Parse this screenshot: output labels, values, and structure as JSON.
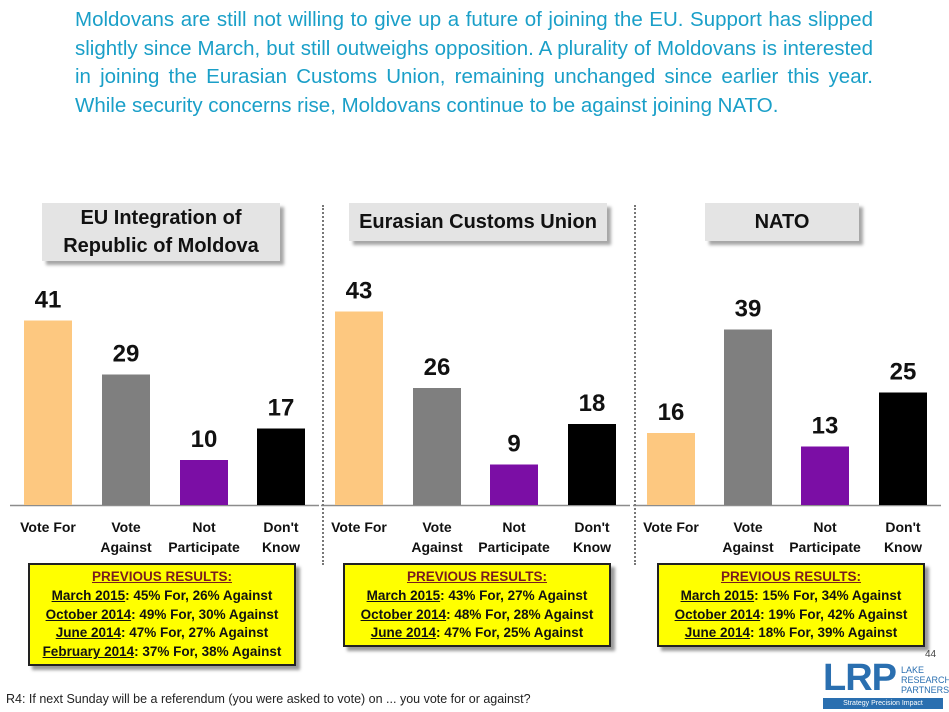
{
  "headline": "Moldovans are still not willing to give up a future of joining the EU. Support has slipped slightly since March, but still outweighs opposition. A plurality of Moldovans is interested in joining the Eurasian Customs Union, remaining unchanged since earlier this year. While security concerns rise, Moldovans continue to be against joining NATO.",
  "chart_data": [
    {
      "type": "bar",
      "title": [
        "EU Integration of",
        "Republic of Moldova"
      ],
      "categories": [
        [
          "Vote For"
        ],
        [
          "Vote",
          "Against"
        ],
        [
          "Not",
          "Participate"
        ],
        [
          "Don't",
          "Know"
        ]
      ],
      "values": [
        41,
        29,
        10,
        17
      ],
      "colors": [
        "#fdc880",
        "#7f7f7f",
        "#7b0ea5",
        "#000000"
      ],
      "previous": {
        "heading": "PREVIOUS RESULTS:",
        "rows": [
          {
            "date": "March 2015",
            "text": ": 45% For, 26% Against"
          },
          {
            "date": "October 2014",
            "text": ": 49% For, 30% Against"
          },
          {
            "date": "June 2014",
            "text": ": 47% For, 27% Against"
          },
          {
            "date": "February 2014",
            "text": ": 37% For, 38% Against"
          }
        ]
      }
    },
    {
      "type": "bar",
      "title": [
        "Eurasian Customs Union"
      ],
      "categories": [
        [
          "Vote For"
        ],
        [
          "Vote",
          "Against"
        ],
        [
          "Not",
          "Participate"
        ],
        [
          "Don't",
          "Know"
        ]
      ],
      "values": [
        43,
        26,
        9,
        18
      ],
      "colors": [
        "#fdc880",
        "#7f7f7f",
        "#7b0ea5",
        "#000000"
      ],
      "previous": {
        "heading": "PREVIOUS RESULTS:",
        "rows": [
          {
            "date": "March 2015",
            "text": ": 43% For, 27% Against"
          },
          {
            "date": "October 2014",
            "text": ": 48% For, 28% Against"
          },
          {
            "date": "June 2014",
            "text": ": 47% For, 25% Against"
          }
        ]
      }
    },
    {
      "type": "bar",
      "title": [
        "NATO"
      ],
      "categories": [
        [
          "Vote For"
        ],
        [
          "Vote",
          "Against"
        ],
        [
          "Not",
          "Participate"
        ],
        [
          "Don't",
          "Know"
        ]
      ],
      "values": [
        16,
        39,
        13,
        25
      ],
      "colors": [
        "#fdc880",
        "#7f7f7f",
        "#7b0ea5",
        "#000000"
      ],
      "previous": {
        "heading": "PREVIOUS RESULTS:",
        "rows": [
          {
            "date": "March 2015",
            "text": ": 15% For, 34% Against"
          },
          {
            "date": "October 2014",
            "text": ": 19% For, 42% Against"
          },
          {
            "date": "June 2014",
            "text": ": 18% For, 39% Against"
          }
        ]
      }
    }
  ],
  "footnote": "R4: If next Sunday will be a referendum (you were asked to vote) on ... you vote for or against?",
  "page_number": "44",
  "logo": {
    "mark": "LRP",
    "name_lines": [
      "LAKE",
      "RESEARCH",
      "PARTNERS"
    ],
    "tagline": "Strategy  Precision  Impact"
  }
}
